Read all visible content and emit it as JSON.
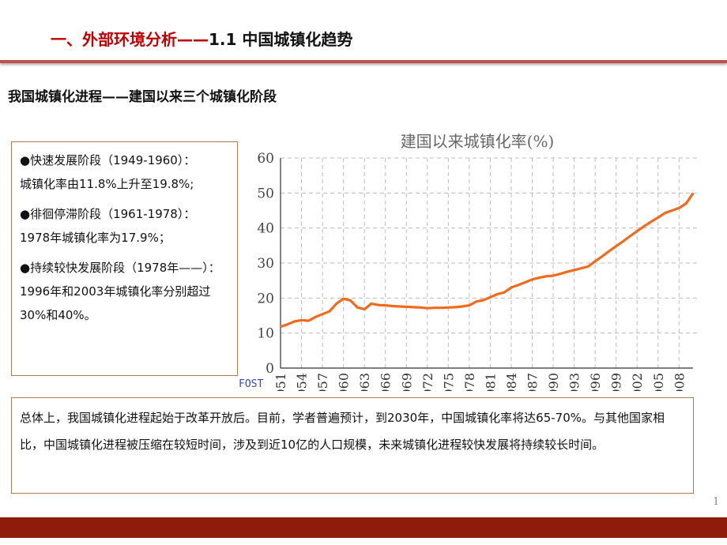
{
  "header": {
    "title_red": "一、外部环境分析——",
    "title_black": "1.1  中国城镇化趋势"
  },
  "subtitle": "我国城镇化进程——建国以来三个城镇化阶段",
  "stages": [
    {
      "line1": "●快速发展阶段（1949-1960）：",
      "line2": "城镇化率由11.8%上升至19.8%;"
    },
    {
      "line1": "●徘徊停滞阶段（1961-1978）：",
      "line2": "1978年城镇化率为17.9%；"
    },
    {
      "line1": "●持续较快发展阶段（1978年——）：1996年和2003年城镇化率分别超过30%和40%。",
      "line2": ""
    }
  ],
  "summary": "总体上，我国城镇化进程起始于改革开放后。目前，学者普遍预计，到2030年，中国城镇化率将达65-70%。与其他国家相比，中国城镇化进程被压缩在较短时间，涉及到近10亿的人口规模，未来城镇化进程较快发展将持续较长时间。",
  "page_number": "1",
  "colors": {
    "accent": "#c00000",
    "rule": "#c0504d",
    "footer": "#8f1c0a",
    "line": "#f26a1b",
    "box_border": "#b07a50"
  },
  "chart_data": {
    "type": "line",
    "title": "建国以来城镇化率(%)",
    "watermark": "FOST",
    "xlabel": "",
    "ylabel": "",
    "xlim": [
      1951,
      2010
    ],
    "ylim": [
      0,
      60
    ],
    "yticks": [
      0,
      10,
      20,
      30,
      40,
      50,
      60
    ],
    "xticks": [
      "1951",
      "1954",
      "1957",
      "1960",
      "1963",
      "1966",
      "1969",
      "1972",
      "1975",
      "1978",
      "1981",
      "1984",
      "1987",
      "1990",
      "1993",
      "1996",
      "1999",
      "2002",
      "2005",
      "2008"
    ],
    "grid": true,
    "x": [
      1951,
      1952,
      1953,
      1954,
      1955,
      1956,
      1957,
      1958,
      1959,
      1960,
      1961,
      1962,
      1963,
      1964,
      1965,
      1966,
      1967,
      1968,
      1969,
      1970,
      1971,
      1972,
      1973,
      1974,
      1975,
      1976,
      1977,
      1978,
      1979,
      1980,
      1981,
      1982,
      1983,
      1984,
      1985,
      1986,
      1987,
      1988,
      1989,
      1990,
      1991,
      1992,
      1993,
      1994,
      1995,
      1996,
      1997,
      1998,
      1999,
      2000,
      2001,
      2002,
      2003,
      2004,
      2005,
      2006,
      2007,
      2008,
      2009,
      2010
    ],
    "series": [
      {
        "values": [
          11.8,
          12.5,
          13.3,
          13.7,
          13.5,
          14.6,
          15.4,
          16.2,
          18.4,
          19.8,
          19.3,
          17.3,
          16.8,
          18.4,
          18.0,
          17.9,
          17.7,
          17.6,
          17.5,
          17.4,
          17.3,
          17.1,
          17.2,
          17.2,
          17.3,
          17.4,
          17.6,
          17.9,
          19.0,
          19.4,
          20.2,
          21.1,
          21.6,
          23.0,
          23.7,
          24.5,
          25.3,
          25.8,
          26.2,
          26.4,
          26.9,
          27.5,
          28.0,
          28.5,
          29.0,
          30.5,
          31.9,
          33.4,
          34.8,
          36.2,
          37.7,
          39.1,
          40.5,
          41.8,
          43.0,
          44.3,
          45.0,
          45.7,
          47.0,
          49.9
        ]
      }
    ]
  }
}
